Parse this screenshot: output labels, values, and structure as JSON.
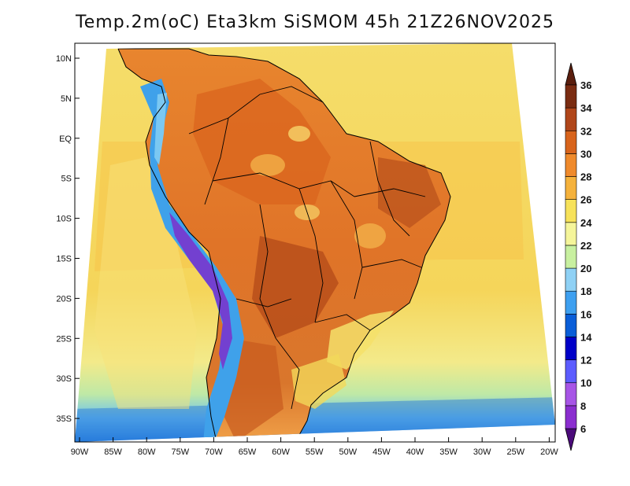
{
  "title": "Temp.2m(oC) Eta3km SiSMOM 45h 21Z26NOV2025",
  "lat_labels": [
    "10N",
    "5N",
    "EQ",
    "5S",
    "10S",
    "15S",
    "20S",
    "25S",
    "30S",
    "35S"
  ],
  "lon_labels": [
    "90W",
    "85W",
    "80W",
    "75W",
    "70W",
    "65W",
    "60W",
    "55W",
    "50W",
    "45W",
    "40W",
    "35W",
    "30W",
    "25W",
    "20W"
  ],
  "colorbar": {
    "unit": "oC",
    "values": [
      "6",
      "8",
      "10",
      "12",
      "14",
      "16",
      "18",
      "20",
      "22",
      "24",
      "26",
      "28",
      "30",
      "32",
      "34",
      "36"
    ],
    "colors": [
      "#6a0fa8",
      "#8b2ecf",
      "#a755e6",
      "#5c5cff",
      "#0000c8",
      "#0a5ed8",
      "#3ea0f0",
      "#8fd1f5",
      "#c8f0a0",
      "#f5f59a",
      "#f7e25a",
      "#f5b23c",
      "#ef8a2c",
      "#d8641c",
      "#b0461a",
      "#7a2c12"
    ],
    "under_color": "#4b0b7a",
    "over_color": "#5a1e0e"
  },
  "map": {
    "ocean_north_color": "#f4d35e",
    "ocean_south_color": "#74c4ee",
    "land_color": "#e47a2c",
    "andes_color": "#3a9fe8",
    "border_color": "#000000"
  }
}
